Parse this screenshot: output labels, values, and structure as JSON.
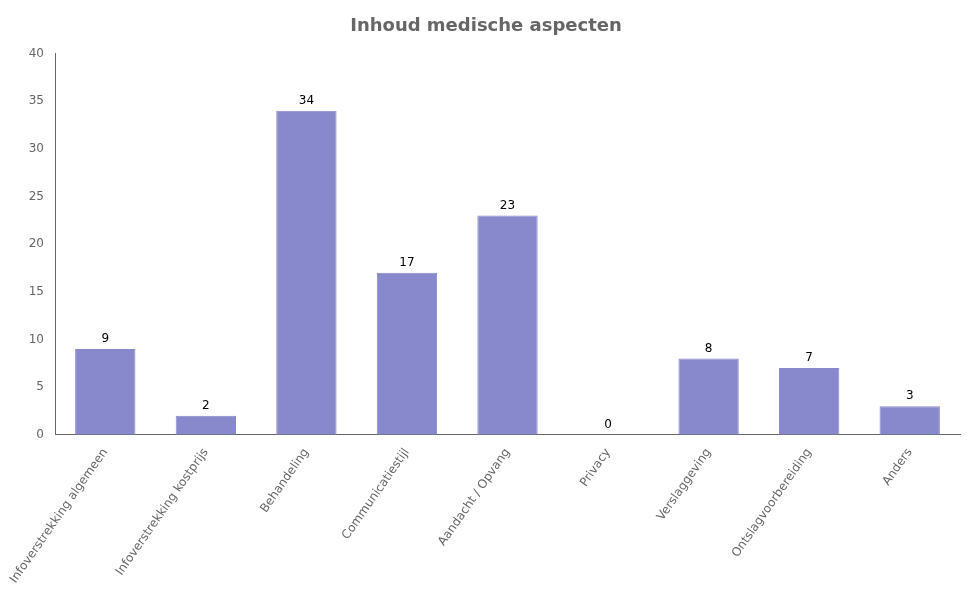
{
  "chart_data": {
    "type": "bar",
    "title": "Inhoud medische aspecten",
    "categories": [
      "Infoverstrekking algemeen",
      "Infoverstrekking kostprijs",
      "Behandeling",
      "Communicatiestijl",
      "Aandacht / Opvang",
      "Privacy",
      "Verslaggeving",
      "Ontslagvoorbereiding",
      "Anders"
    ],
    "values": [
      9,
      2,
      34,
      17,
      23,
      0,
      8,
      7,
      3
    ],
    "color": "#8888cc",
    "ylim": [
      0,
      40
    ],
    "yticks": [
      0,
      5,
      10,
      15,
      20,
      25,
      30,
      35,
      40
    ],
    "grid": false,
    "data_labels": true
  }
}
